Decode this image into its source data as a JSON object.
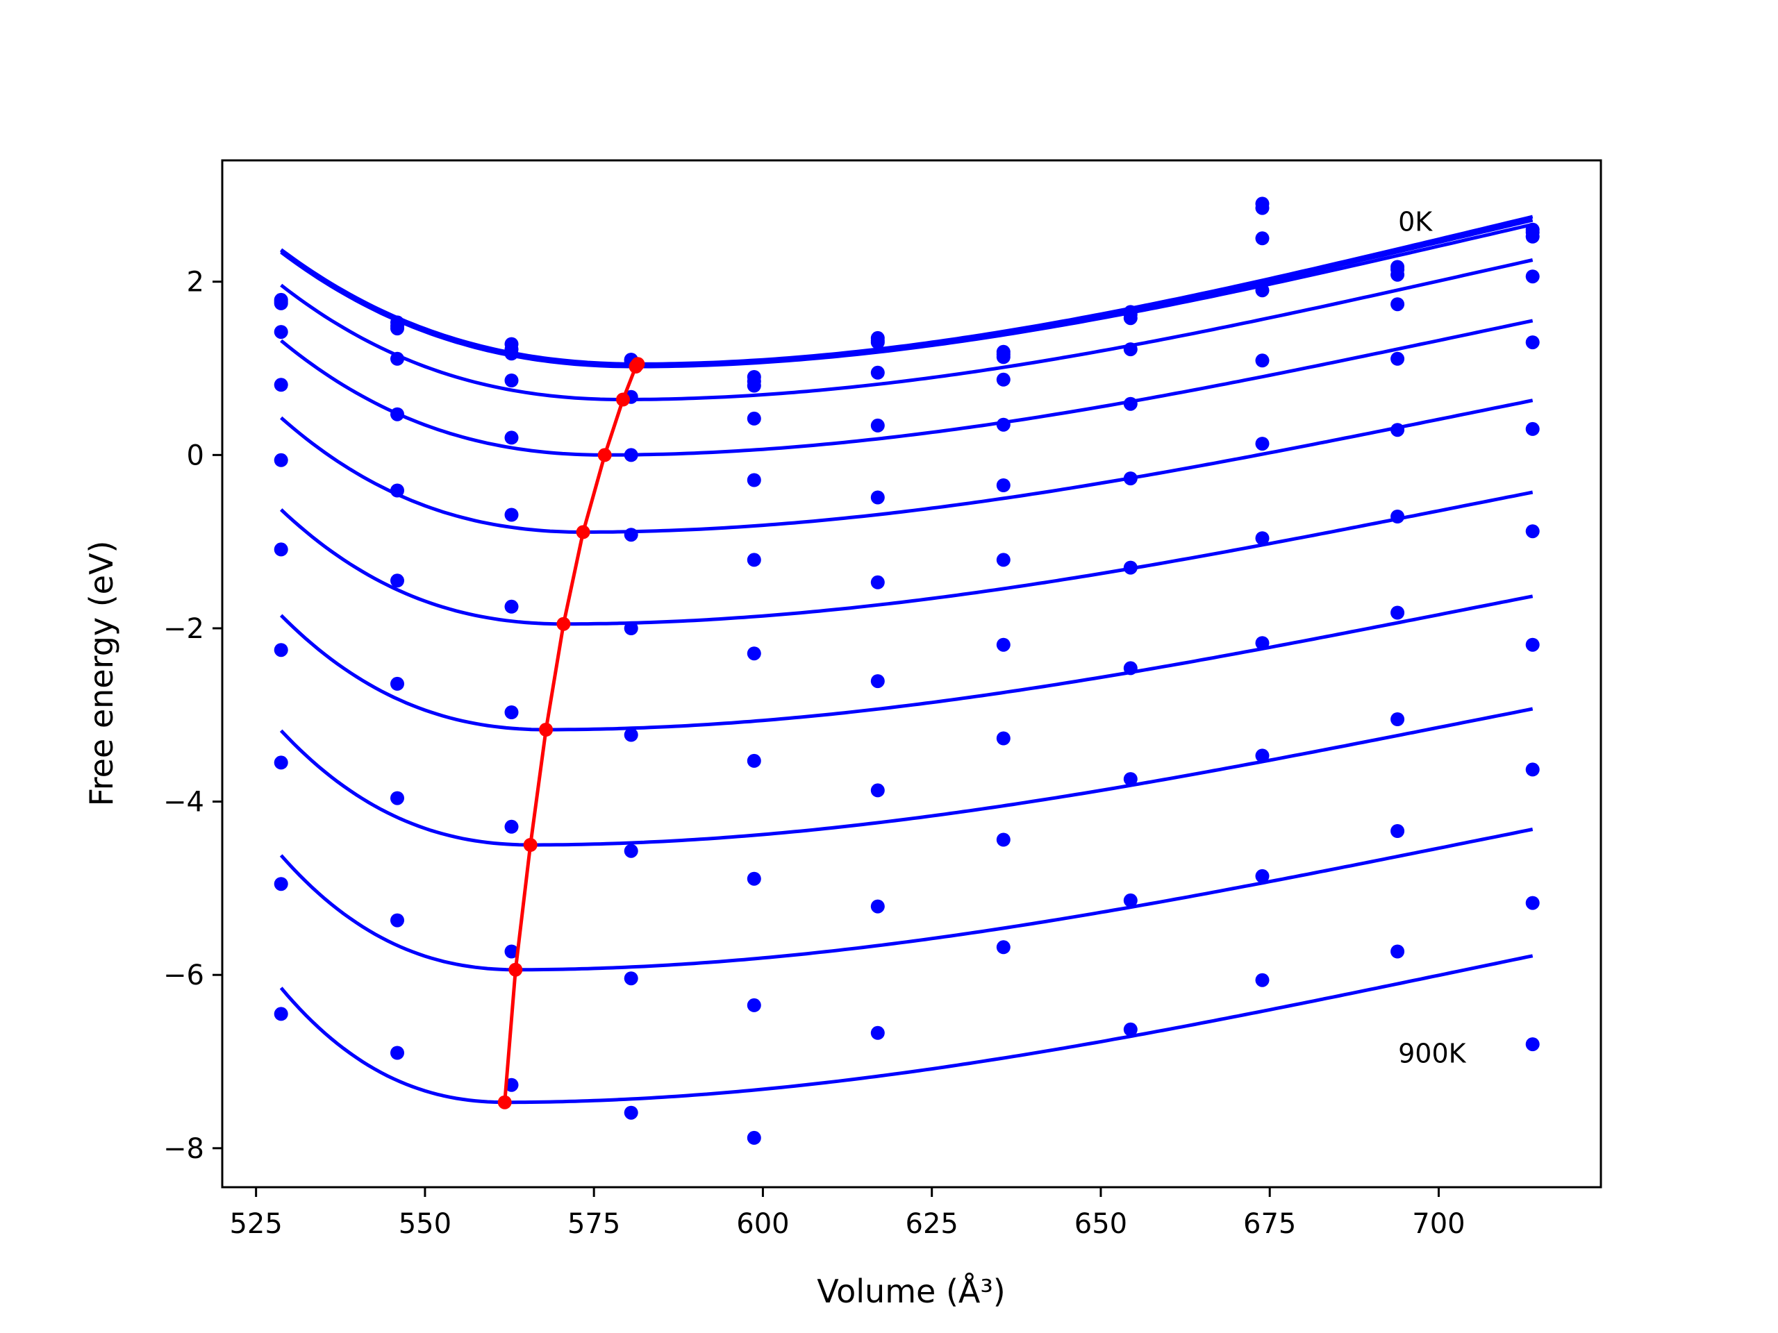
{
  "chart_data": {
    "type": "scatter",
    "xlabel": "Volume (Å³)",
    "ylabel": "Free energy (eV)",
    "xlim": [
      520,
      724
    ],
    "ylim": [
      -8.45,
      3.4
    ],
    "x_ticks": [
      525,
      550,
      575,
      600,
      625,
      650,
      675,
      700
    ],
    "y_ticks": [
      -8,
      -6,
      -4,
      -2,
      0,
      2
    ],
    "x_tick_labels": [
      "525",
      "550",
      "575",
      "600",
      "625",
      "650",
      "675",
      "700"
    ],
    "y_tick_labels": [
      "−8",
      "−6",
      "−4",
      "−2",
      "0",
      "2"
    ],
    "grid": false,
    "colors": {
      "points": "#0000ff",
      "fits": "#0000ff",
      "minima": "#ff0000"
    },
    "annotations": [
      {
        "text": "0K",
        "x": 694,
        "y": 2.7
      },
      {
        "text": "900K",
        "x": 694,
        "y": -6.9
      }
    ],
    "x_points": [
      528.7,
      545.9,
      562.8,
      580.5,
      598.7,
      617.0,
      635.6,
      654.4,
      673.9,
      693.9,
      713.9
    ],
    "point_series": [
      [
        1.79,
        1.53,
        1.28,
        1.1,
        0.9,
        1.35,
        1.19,
        1.65,
        2.9,
        2.17,
        2.6
      ],
      [
        1.77,
        1.49,
        1.22,
        1.1,
        0.85,
        1.32,
        1.16,
        1.62,
        2.85,
        2.14,
        2.57
      ],
      [
        1.75,
        1.46,
        1.17,
        1.08,
        0.8,
        1.3,
        1.13,
        1.58,
        2.5,
        2.08,
        2.52
      ],
      [
        1.42,
        1.11,
        0.86,
        0.67,
        0.42,
        0.95,
        0.87,
        1.22,
        1.9,
        1.74,
        2.06
      ],
      [
        0.81,
        0.47,
        0.2,
        0.0,
        -0.29,
        0.34,
        0.35,
        0.59,
        1.09,
        1.11,
        1.3
      ],
      [
        -0.06,
        -0.41,
        -0.69,
        -0.92,
        -1.21,
        -0.49,
        -0.35,
        -0.27,
        0.13,
        0.29,
        0.3
      ],
      [
        -1.09,
        -1.45,
        -1.75,
        -2.0,
        -2.29,
        -1.47,
        -1.21,
        -1.3,
        -0.96,
        -0.71,
        -0.88
      ],
      [
        -2.25,
        -2.64,
        -2.97,
        -3.23,
        -3.53,
        -2.61,
        -2.19,
        -2.46,
        -2.17,
        -1.82,
        -2.19
      ],
      [
        -3.55,
        -3.96,
        -4.29,
        -4.57,
        -4.89,
        -3.87,
        -3.27,
        -3.74,
        -3.47,
        -3.05,
        -3.63
      ],
      [
        -4.95,
        -5.37,
        -5.73,
        -6.04,
        -6.35,
        -5.21,
        -4.44,
        -5.14,
        -4.86,
        -4.34,
        -5.17
      ],
      [
        -6.45,
        -6.9,
        -7.27,
        -7.59,
        -7.88,
        -6.67,
        -5.68,
        -6.63,
        -6.06,
        -5.73,
        -6.8
      ]
    ],
    "fit_series": [
      {
        "min_v": 581.5,
        "min_f": 1.05,
        "end_f": 2.75
      },
      {
        "min_v": 581.4,
        "min_f": 1.04,
        "end_f": 2.71
      },
      {
        "min_v": 581.2,
        "min_f": 1.02,
        "end_f": 2.66
      },
      {
        "min_v": 579.3,
        "min_f": 0.64,
        "end_f": 2.25
      },
      {
        "min_v": 576.6,
        "min_f": 0.0,
        "end_f": 1.55
      },
      {
        "min_v": 573.4,
        "min_f": -0.89,
        "end_f": 0.63
      },
      {
        "min_v": 570.5,
        "min_f": -1.95,
        "end_f": -0.43
      },
      {
        "min_v": 567.9,
        "min_f": -3.17,
        "end_f": -1.63
      },
      {
        "min_v": 565.6,
        "min_f": -4.5,
        "end_f": -2.93
      },
      {
        "min_v": 563.4,
        "min_f": -5.94,
        "end_f": -4.32
      },
      {
        "min_v": 561.8,
        "min_f": -7.47,
        "end_f": -5.78
      }
    ],
    "fit_range": [
      528.7,
      713.9
    ],
    "minima_line": {
      "x": [
        581.5,
        581.4,
        581.2,
        579.3,
        576.6,
        573.4,
        570.5,
        567.9,
        565.6,
        563.4,
        561.8
      ],
      "y": [
        1.05,
        1.04,
        1.02,
        0.64,
        0.0,
        -0.89,
        -1.95,
        -3.17,
        -4.5,
        -5.94,
        -7.47
      ]
    }
  }
}
